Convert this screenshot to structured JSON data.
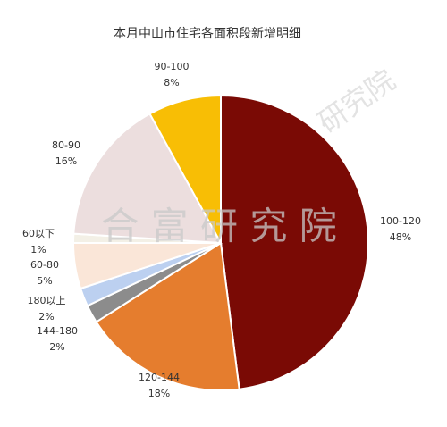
{
  "chart_data": {
    "type": "pie",
    "title": "本月中山市住宅各面积段新增明细",
    "categories": [
      "100-120",
      "120-144",
      "144-180",
      "180以上",
      "60-80",
      "60以下",
      "80-90",
      "90-100"
    ],
    "values": [
      48,
      18,
      2,
      2,
      5,
      1,
      16,
      8
    ],
    "value_labels": [
      "48%",
      "18%",
      "2%",
      "2%",
      "5%",
      "1%",
      "16%",
      "8%"
    ],
    "colors": [
      "#7a0a05",
      "#e57d2e",
      "#8c8c8c",
      "#bcd0f0",
      "#fae6d8",
      "#f3f0e6",
      "#ecdede",
      "#f8be05"
    ],
    "watermark": "合 富 研 究 院",
    "watermark_corner": "研究院"
  }
}
